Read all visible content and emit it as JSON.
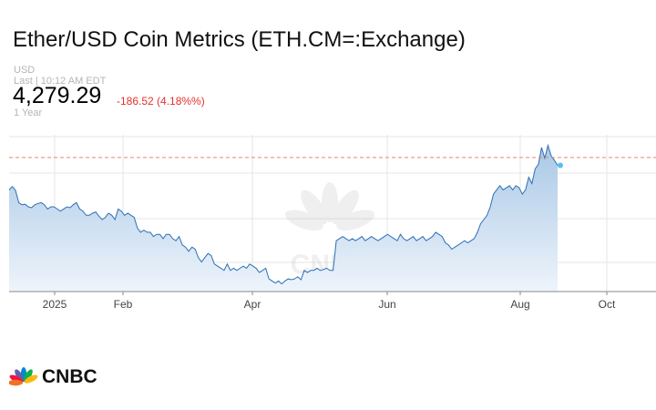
{
  "header": {
    "title": "Ether/USD Coin Metrics (ETH.CM=:Exchange)",
    "currency": "USD",
    "last_update": "Last | 10:12 AM EDT",
    "price": "4,279.29",
    "change": "-186.52 (4.18%%)",
    "range": "1 Year"
  },
  "colors": {
    "line": "#2b6fb6",
    "fill_top": "#a9c8e6",
    "fill_bottom": "#eef4fb",
    "reference_line": "#e8866a",
    "change_negative": "#e5312d",
    "marker": "#5bbcf0"
  },
  "brand": {
    "logo_text": "CNBC",
    "logo_icon": "peacock-icon"
  },
  "chart_data": {
    "type": "area",
    "title": "Ether/USD Coin Metrics (ETH.CM=:Exchange)",
    "xlabel": "",
    "ylabel": "",
    "x_ticks": [
      "2025",
      "Feb",
      "Apr",
      "Jun",
      "Aug",
      "Oct"
    ],
    "previous_close": 4465.81,
    "last_price": 4279.29,
    "ylim": [
      1300,
      5000
    ],
    "grid": true,
    "series": [
      {
        "values": [
          3700,
          3780,
          3690,
          3400,
          3350,
          3360,
          3300,
          3280,
          3350,
          3380,
          3400,
          3350,
          3250,
          3300,
          3300,
          3250,
          3200,
          3250,
          3300,
          3280,
          3350,
          3400,
          3250,
          3200,
          3100,
          3100,
          3150,
          3180,
          3080,
          3000,
          3050,
          3150,
          3100,
          3000,
          3250,
          3200,
          3100,
          3150,
          3100,
          3050,
          2800,
          2700,
          2750,
          2700,
          2700,
          2600,
          2650,
          2650,
          2550,
          2650,
          2650,
          2550,
          2500,
          2600,
          2400,
          2350,
          2250,
          2350,
          2300,
          2100,
          2000,
          2100,
          2200,
          2150,
          1950,
          1900,
          1850,
          1800,
          1950,
          1800,
          1850,
          1800,
          1850,
          1900,
          1850,
          1950,
          1900,
          1850,
          1750,
          1800,
          1850,
          1600,
          1550,
          1500,
          1550,
          1480,
          1550,
          1600,
          1580,
          1600,
          1650,
          1580,
          1800,
          1750,
          1800,
          1800,
          1850,
          1800,
          1820,
          1850,
          1800,
          1800,
          2500,
          2550,
          2600,
          2550,
          2500,
          2550,
          2500,
          2550,
          2600,
          2500,
          2550,
          2600,
          2550,
          2500,
          2550,
          2600,
          2650,
          2600,
          2550,
          2500,
          2650,
          2550,
          2500,
          2550,
          2600,
          2500,
          2550,
          2600,
          2500,
          2550,
          2600,
          2700,
          2650,
          2600,
          2450,
          2400,
          2300,
          2350,
          2400,
          2450,
          2500,
          2450,
          2500,
          2550,
          2700,
          2900,
          3000,
          3100,
          3300,
          3600,
          3700,
          3800,
          3700,
          3750,
          3800,
          3700,
          3800,
          3750,
          3600,
          3700,
          4000,
          3850,
          4200,
          4300,
          4700,
          4450,
          4750,
          4500,
          4400,
          4279.29
        ]
      }
    ]
  }
}
